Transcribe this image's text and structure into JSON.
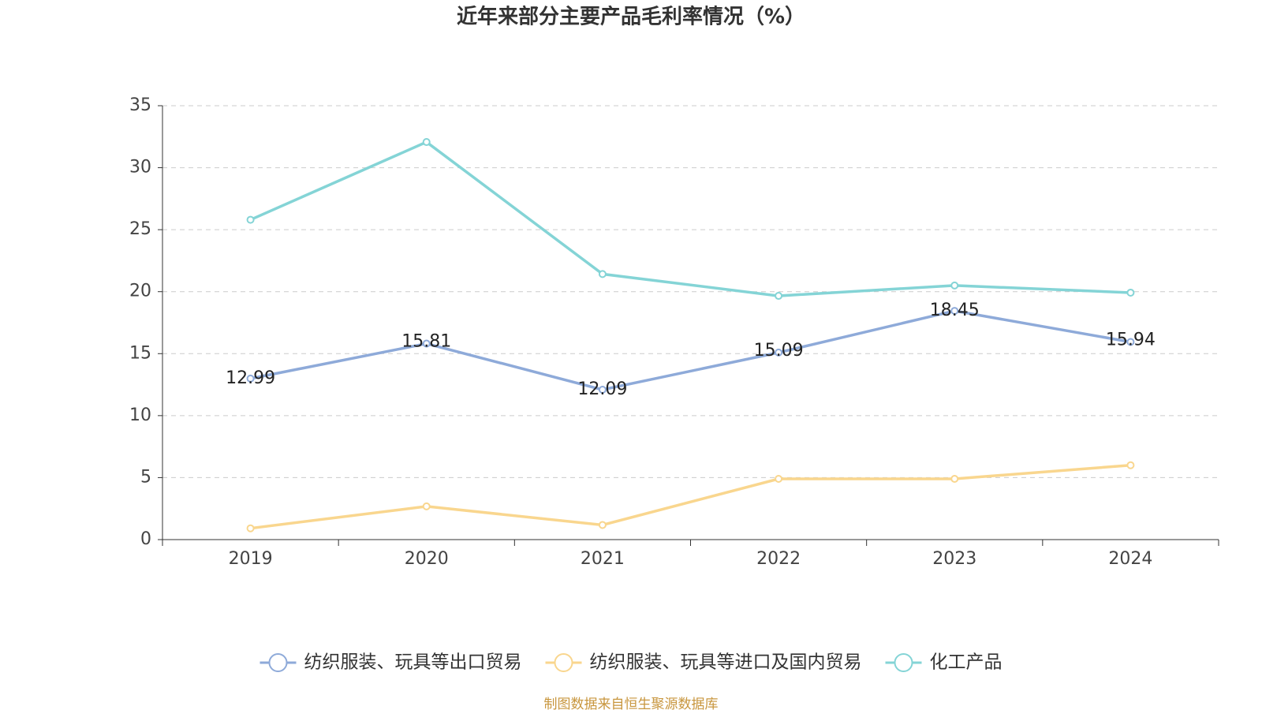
{
  "chart_data": {
    "type": "line",
    "title": "近年来部分主要产品毛利率情况（%）",
    "source": "制图数据来自恒生聚源数据库",
    "categories": [
      "2019",
      "2020",
      "2021",
      "2022",
      "2023",
      "2024"
    ],
    "series": [
      {
        "name": "纺织服装、玩具等出口贸易",
        "color": "#8eaad9",
        "values": [
          12.99,
          15.81,
          12.09,
          15.09,
          18.45,
          15.94
        ],
        "show_labels": true
      },
      {
        "name": "纺织服装、玩具等进口及国内贸易",
        "color": "#f9d68e",
        "values": [
          0.91,
          2.68,
          1.18,
          4.9,
          4.9,
          6.0
        ],
        "show_labels": false
      },
      {
        "name": "化工产品",
        "color": "#84d4d6",
        "values": [
          25.8,
          32.07,
          21.42,
          19.66,
          20.5,
          19.92
        ],
        "show_labels": false
      }
    ],
    "ylim": [
      0,
      35
    ],
    "yticks": [
      0,
      5,
      10,
      15,
      20,
      25,
      30,
      35
    ],
    "grid": true,
    "legend": "bottom"
  }
}
